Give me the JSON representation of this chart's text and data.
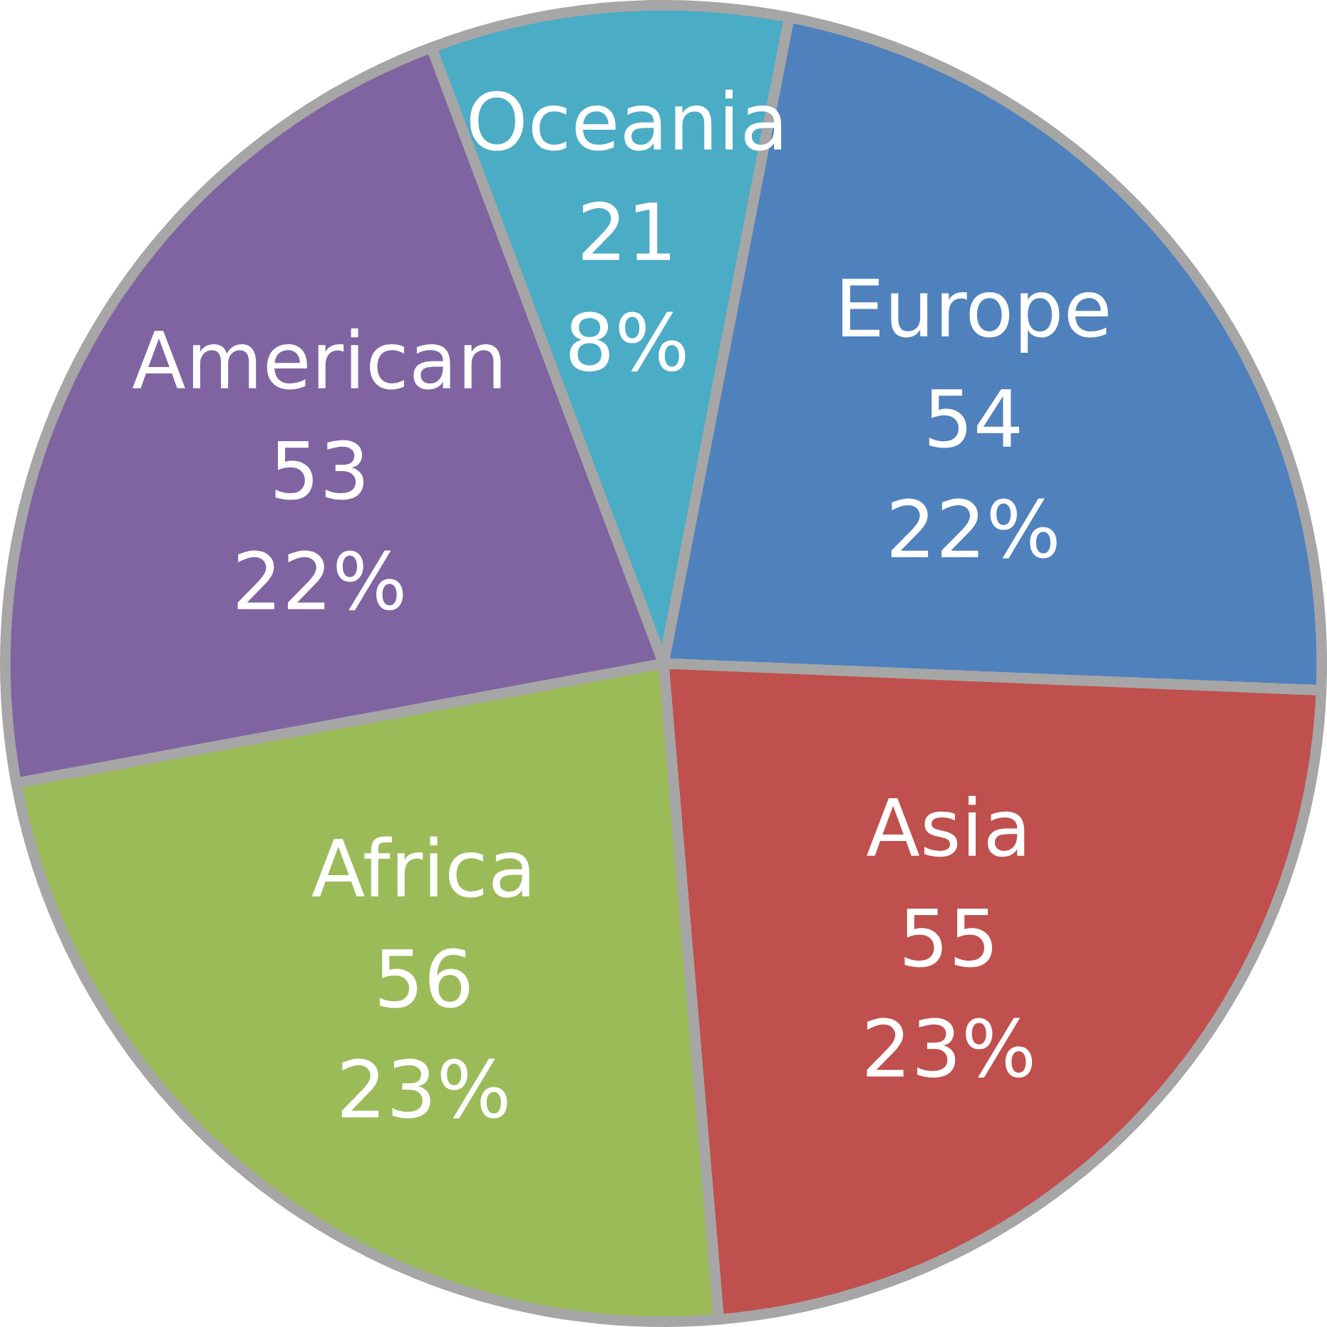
{
  "chart_data": {
    "type": "pie",
    "categories": [
      "Europe",
      "Asia",
      "Africa",
      "American",
      "Oceania"
    ],
    "values": [
      54,
      55,
      56,
      53,
      21
    ],
    "colors": [
      "#4f81bd",
      "#c0504d",
      "#9bbb59",
      "#8064a2",
      "#4bacc6"
    ],
    "value_labels": [
      "54",
      "55",
      "56",
      "53",
      "21"
    ],
    "annotations": [
      {
        "text": "22%",
        "x": "Europe"
      },
      {
        "text": "23%",
        "x": "Asia"
      },
      {
        "text": "23%",
        "x": "Africa"
      },
      {
        "text": "22%",
        "x": "American"
      },
      {
        "text": "8%",
        "x": "Oceania"
      }
    ]
  }
}
